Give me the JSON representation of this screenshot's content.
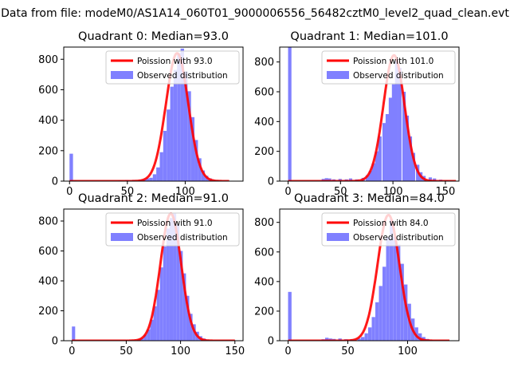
{
  "figure": {
    "suptitle": "Data from file: modeM0/AS1A14_060T01_9000006556_56482cztM0_level2_quad_clean.evt"
  },
  "colors": {
    "observed": "#8080ff",
    "poisson": "#ff0000",
    "axis": "#000000"
  },
  "chart_data": [
    {
      "type": "bar",
      "title": "Quadrant 0: Median=93.0",
      "legend": {
        "placement": "top-right",
        "entries": [
          "Poission with 93.0",
          "Observed distribution"
        ]
      },
      "xlim": [
        -5,
        150
      ],
      "ylim": [
        0,
        880
      ],
      "xticks": [
        0,
        50,
        100
      ],
      "xtick_labels": [
        "0",
        "50",
        "100"
      ],
      "yticks": [
        0,
        200,
        400,
        600,
        800
      ],
      "ytick_labels": [
        "0",
        "200",
        "400",
        "600",
        "800"
      ],
      "bin_width": 3,
      "bins": [
        {
          "x": 0,
          "count": 180
        },
        {
          "x": 3,
          "count": 5
        },
        {
          "x": 42,
          "count": 5
        },
        {
          "x": 48,
          "count": 8
        },
        {
          "x": 54,
          "count": 8
        },
        {
          "x": 60,
          "count": 10
        },
        {
          "x": 63,
          "count": 12
        },
        {
          "x": 66,
          "count": 18
        },
        {
          "x": 69,
          "count": 22
        },
        {
          "x": 72,
          "count": 45
        },
        {
          "x": 75,
          "count": 90
        },
        {
          "x": 78,
          "count": 190
        },
        {
          "x": 81,
          "count": 330
        },
        {
          "x": 84,
          "count": 470
        },
        {
          "x": 87,
          "count": 620
        },
        {
          "x": 90,
          "count": 730
        },
        {
          "x": 93,
          "count": 840
        },
        {
          "x": 96,
          "count": 870
        },
        {
          "x": 99,
          "count": 720
        },
        {
          "x": 102,
          "count": 590
        },
        {
          "x": 105,
          "count": 420
        },
        {
          "x": 108,
          "count": 270
        },
        {
          "x": 111,
          "count": 150
        },
        {
          "x": 114,
          "count": 70
        },
        {
          "x": 117,
          "count": 35
        },
        {
          "x": 120,
          "count": 18
        },
        {
          "x": 123,
          "count": 8
        },
        {
          "x": 126,
          "count": 5
        }
      ],
      "poisson": {
        "mean": 93.0,
        "peak": 840,
        "sigma": 9.64,
        "x_range": [
          0,
          138
        ]
      }
    },
    {
      "type": "bar",
      "title": "Quadrant 1: Median=101.0",
      "legend": {
        "placement": "top-right",
        "entries": [
          "Poission with 101.0",
          "Observed distribution"
        ]
      },
      "xlim": [
        -8,
        163
      ],
      "ylim": [
        0,
        900
      ],
      "xticks": [
        0,
        50,
        100,
        150
      ],
      "xtick_labels": [
        "0",
        "50",
        "100",
        "150"
      ],
      "yticks": [
        0,
        200,
        400,
        600,
        800
      ],
      "ytick_labels": [
        "0",
        "200",
        "400",
        "600",
        "800"
      ],
      "bin_width": 3.2,
      "bins": [
        {
          "x": 0,
          "count": 900
        },
        {
          "x": 32,
          "count": 15
        },
        {
          "x": 35,
          "count": 20
        },
        {
          "x": 38,
          "count": 18
        },
        {
          "x": 42,
          "count": 12
        },
        {
          "x": 48,
          "count": 15
        },
        {
          "x": 54,
          "count": 12
        },
        {
          "x": 58,
          "count": 18
        },
        {
          "x": 64,
          "count": 12
        },
        {
          "x": 70,
          "count": 22
        },
        {
          "x": 74,
          "count": 40
        },
        {
          "x": 77,
          "count": 70
        },
        {
          "x": 80,
          "count": 120
        },
        {
          "x": 83,
          "count": 200
        },
        {
          "x": 86,
          "count": 300
        },
        {
          "x": 90,
          "count": 390
        },
        {
          "x": 93,
          "count": 450
        },
        {
          "x": 96,
          "count": 560
        },
        {
          "x": 99,
          "count": 650
        },
        {
          "x": 102,
          "count": 820
        },
        {
          "x": 105,
          "count": 760
        },
        {
          "x": 109,
          "count": 600
        },
        {
          "x": 112,
          "count": 440
        },
        {
          "x": 115,
          "count": 300
        },
        {
          "x": 118,
          "count": 190
        },
        {
          "x": 122,
          "count": 110
        },
        {
          "x": 125,
          "count": 60
        },
        {
          "x": 128,
          "count": 35
        },
        {
          "x": 134,
          "count": 25
        },
        {
          "x": 138,
          "count": 18
        },
        {
          "x": 144,
          "count": 10
        },
        {
          "x": 150,
          "count": 6
        }
      ],
      "poisson": {
        "mean": 101.0,
        "peak": 845,
        "sigma": 10.05,
        "x_range": [
          0,
          160
        ]
      }
    },
    {
      "type": "bar",
      "title": "Quadrant 2: Median=91.0",
      "legend": {
        "placement": "top-right",
        "entries": [
          "Poission with 91.0",
          "Observed distribution"
        ]
      },
      "xlim": [
        -7.5,
        157.5
      ],
      "ylim": [
        0,
        880
      ],
      "xticks": [
        0,
        50,
        100,
        150
      ],
      "xtick_labels": [
        "0",
        "50",
        "100",
        "150"
      ],
      "yticks": [
        0,
        200,
        400,
        600,
        800
      ],
      "ytick_labels": [
        "0",
        "200",
        "400",
        "600",
        "800"
      ],
      "bin_width": 3,
      "bins": [
        {
          "x": 0,
          "count": 95
        },
        {
          "x": 60,
          "count": 8
        },
        {
          "x": 63,
          "count": 18
        },
        {
          "x": 66,
          "count": 40
        },
        {
          "x": 69,
          "count": 75
        },
        {
          "x": 72,
          "count": 140
        },
        {
          "x": 75,
          "count": 230
        },
        {
          "x": 78,
          "count": 340
        },
        {
          "x": 81,
          "count": 490
        },
        {
          "x": 84,
          "count": 630
        },
        {
          "x": 87,
          "count": 750
        },
        {
          "x": 90,
          "count": 820
        },
        {
          "x": 93,
          "count": 850
        },
        {
          "x": 96,
          "count": 780
        },
        {
          "x": 99,
          "count": 600
        },
        {
          "x": 102,
          "count": 450
        },
        {
          "x": 105,
          "count": 300
        },
        {
          "x": 108,
          "count": 180
        },
        {
          "x": 111,
          "count": 110
        },
        {
          "x": 114,
          "count": 60
        },
        {
          "x": 117,
          "count": 30
        },
        {
          "x": 120,
          "count": 15
        },
        {
          "x": 123,
          "count": 8
        }
      ],
      "poisson": {
        "mean": 91.0,
        "peak": 850,
        "sigma": 9.54,
        "x_range": [
          0,
          150
        ]
      }
    },
    {
      "type": "bar",
      "title": "Quadrant 3: Median=84.0",
      "legend": {
        "placement": "top-right",
        "entries": [
          "Poission with 84.0",
          "Observed distribution"
        ]
      },
      "xlim": [
        -7,
        143
      ],
      "ylim": [
        0,
        890
      ],
      "xticks": [
        0,
        50,
        100
      ],
      "xtick_labels": [
        "0",
        "50",
        "100"
      ],
      "yticks": [
        0,
        200,
        400,
        600,
        800
      ],
      "ytick_labels": [
        "0",
        "200",
        "400",
        "600",
        "800"
      ],
      "bin_width": 2.9,
      "bins": [
        {
          "x": 0,
          "count": 330
        },
        {
          "x": 28,
          "count": 10
        },
        {
          "x": 31,
          "count": 20
        },
        {
          "x": 34,
          "count": 15
        },
        {
          "x": 37,
          "count": 12
        },
        {
          "x": 42,
          "count": 15
        },
        {
          "x": 47,
          "count": 10
        },
        {
          "x": 52,
          "count": 8
        },
        {
          "x": 58,
          "count": 15
        },
        {
          "x": 61,
          "count": 25
        },
        {
          "x": 64,
          "count": 50
        },
        {
          "x": 67,
          "count": 90
        },
        {
          "x": 70,
          "count": 160
        },
        {
          "x": 73,
          "count": 260
        },
        {
          "x": 76,
          "count": 370
        },
        {
          "x": 79,
          "count": 500
        },
        {
          "x": 82,
          "count": 700
        },
        {
          "x": 85,
          "count": 820
        },
        {
          "x": 88,
          "count": 700
        },
        {
          "x": 91,
          "count": 650
        },
        {
          "x": 94,
          "count": 520
        },
        {
          "x": 97,
          "count": 380
        },
        {
          "x": 100,
          "count": 250
        },
        {
          "x": 103,
          "count": 150
        },
        {
          "x": 106,
          "count": 90
        },
        {
          "x": 109,
          "count": 50
        },
        {
          "x": 112,
          "count": 25
        },
        {
          "x": 115,
          "count": 12
        },
        {
          "x": 118,
          "count": 6
        }
      ],
      "poisson": {
        "mean": 84.0,
        "peak": 850,
        "sigma": 9.17,
        "x_range": [
          0,
          135
        ]
      }
    }
  ]
}
